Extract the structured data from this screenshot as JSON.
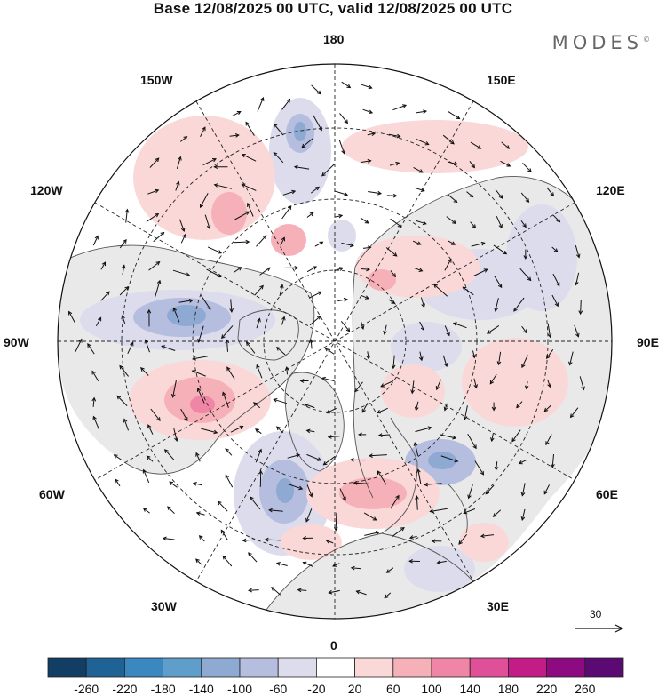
{
  "title": "Base 12/08/2025 00 UTC, valid 12/08/2025 00 UTC",
  "brand": "MODES",
  "brand_mark": "©",
  "longitude_labels": {
    "lon_180": "180",
    "lon_150e": "150E",
    "lon_120e": "120E",
    "lon_90e": "90E",
    "lon_60e": "60E",
    "lon_30e": "30E",
    "lon_0": "0",
    "lon_30w": "30W",
    "lon_60w": "60W",
    "lon_90w": "90W",
    "lon_120w": "120W",
    "lon_150w": "150W"
  },
  "reference_vector": {
    "label": "30"
  },
  "colorbar": {
    "labels": [
      "-260",
      "-220",
      "-180",
      "-140",
      "-100",
      "-60",
      "-20",
      "20",
      "60",
      "100",
      "140",
      "180",
      "220",
      "260"
    ],
    "colors": [
      "#133e63",
      "#1e6296",
      "#3b87c0",
      "#5f9ecb",
      "#8ea9d2",
      "#b6bedf",
      "#dcdcec",
      "#ffffff",
      "#fad8d8",
      "#f6b0b8",
      "#ef86a6",
      "#e05098",
      "#c41c86",
      "#8e0a80",
      "#5a0a72"
    ]
  }
}
